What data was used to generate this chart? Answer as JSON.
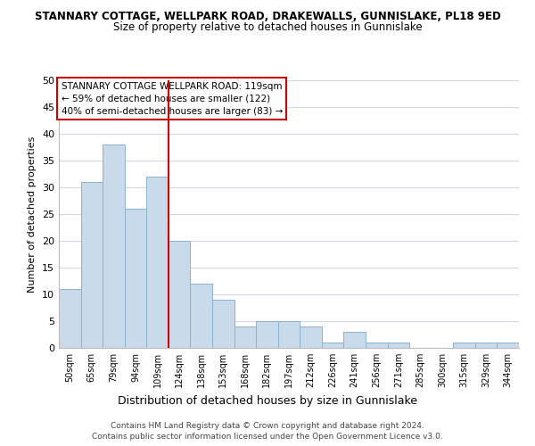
{
  "title": "STANNARY COTTAGE, WELLPARK ROAD, DRAKEWALLS, GUNNISLAKE, PL18 9ED",
  "subtitle": "Size of property relative to detached houses in Gunnislake",
  "xlabel": "Distribution of detached houses by size in Gunnislake",
  "ylabel": "Number of detached properties",
  "bar_labels": [
    "50sqm",
    "65sqm",
    "79sqm",
    "94sqm",
    "109sqm",
    "124sqm",
    "138sqm",
    "153sqm",
    "168sqm",
    "182sqm",
    "197sqm",
    "212sqm",
    "226sqm",
    "241sqm",
    "256sqm",
    "271sqm",
    "285sqm",
    "300sqm",
    "315sqm",
    "329sqm",
    "344sqm"
  ],
  "bar_values": [
    11,
    31,
    38,
    26,
    32,
    20,
    12,
    9,
    4,
    5,
    5,
    4,
    1,
    3,
    1,
    1,
    0,
    0,
    1,
    1,
    1
  ],
  "bar_color": "#c9daea",
  "bar_edgecolor": "#8ab4cc",
  "ylim": [
    0,
    50
  ],
  "yticks": [
    0,
    5,
    10,
    15,
    20,
    25,
    30,
    35,
    40,
    45,
    50
  ],
  "vline_color": "#cc0000",
  "annotation_title": "STANNARY COTTAGE WELLPARK ROAD: 119sqm",
  "annotation_line1": "← 59% of detached houses are smaller (122)",
  "annotation_line2": "40% of semi-detached houses are larger (83) →",
  "annotation_box_edgecolor": "#cc0000",
  "footer_line1": "Contains HM Land Registry data © Crown copyright and database right 2024.",
  "footer_line2": "Contains public sector information licensed under the Open Government Licence v3.0.",
  "background_color": "#ffffff",
  "grid_color": "#d0d8e8"
}
